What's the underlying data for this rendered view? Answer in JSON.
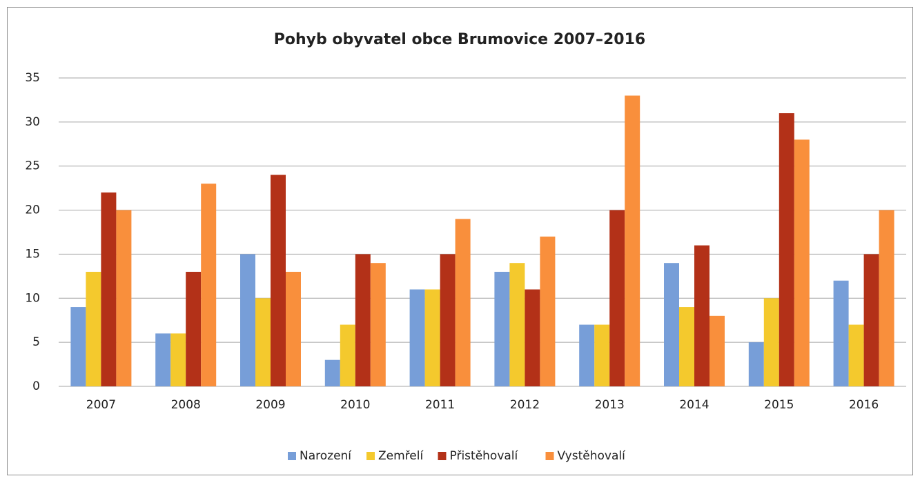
{
  "chart_data": {
    "type": "bar",
    "title": "Pohyb obyvatel obce Brumovice 2007–2016",
    "categories": [
      "2007",
      "2008",
      "2009",
      "2010",
      "2011",
      "2012",
      "2013",
      "2014",
      "2015",
      "2016"
    ],
    "series": [
      {
        "name": "Narození",
        "color": "#779ed8",
        "values": [
          9,
          6,
          15,
          3,
          11,
          13,
          7,
          14,
          5,
          12
        ]
      },
      {
        "name": "Zemřelí",
        "color": "#f4c92d",
        "values": [
          13,
          6,
          10,
          7,
          11,
          14,
          7,
          9,
          10,
          7
        ]
      },
      {
        "name": "Přistěhovalí",
        "color": "#b33118",
        "values": [
          22,
          13,
          24,
          15,
          15,
          11,
          20,
          16,
          31,
          15
        ]
      },
      {
        "name": "Vystěhovalí",
        "color": "#f98f3c",
        "values": [
          20,
          23,
          13,
          14,
          19,
          17,
          33,
          8,
          28,
          20
        ]
      }
    ],
    "ylim": [
      0,
      35
    ],
    "yticks": [
      0,
      5,
      10,
      15,
      20,
      25,
      30,
      35
    ],
    "grid": true,
    "legend": "bottom"
  }
}
